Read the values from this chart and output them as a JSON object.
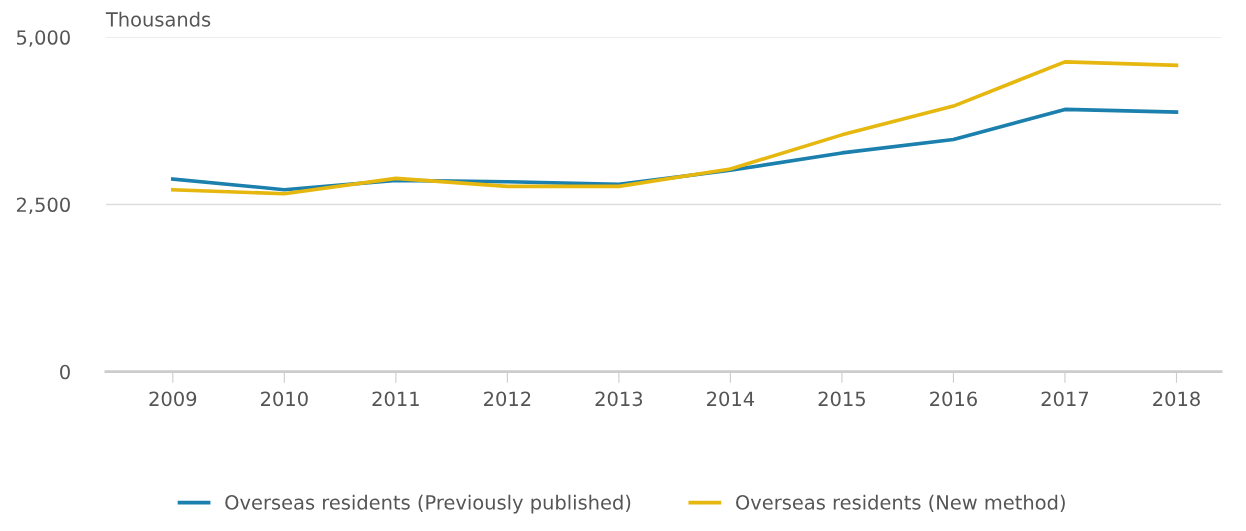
{
  "chart_data": {
    "type": "line",
    "ylabel": "Thousands",
    "categories": [
      "2009",
      "2010",
      "2011",
      "2012",
      "2013",
      "2014",
      "2015",
      "2016",
      "2017",
      "2018"
    ],
    "series": [
      {
        "name": "Overseas residents (Previously published)",
        "color": "#1b80ad",
        "values": [
          2880,
          2720,
          2860,
          2840,
          2800,
          3010,
          3270,
          3470,
          3920,
          3880
        ]
      },
      {
        "name": "Overseas residents (New method)",
        "color": "#e6b70f",
        "values": [
          2720,
          2660,
          2890,
          2770,
          2770,
          3030,
          3540,
          3970,
          4630,
          4580
        ]
      }
    ],
    "ylim": [
      0,
      5000
    ],
    "yticks": [
      {
        "value": 0,
        "label": "0"
      },
      {
        "value": 2500,
        "label": "2,500"
      },
      {
        "value": 5000,
        "label": "5,000"
      }
    ],
    "grid": "y",
    "legend": "bottom",
    "marker": "none",
    "line_style": "solid"
  }
}
